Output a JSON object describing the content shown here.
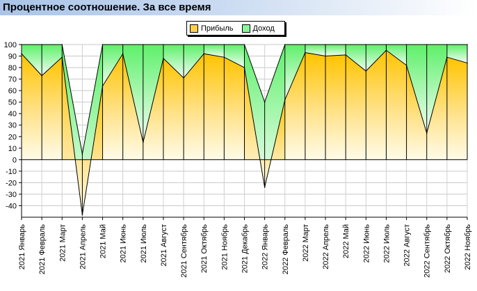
{
  "header": {
    "title": "Процентное соотношение. За все время"
  },
  "chart_data": {
    "type": "area",
    "title": "Процентное соотношение. За все время",
    "categories": [
      "2021 Январь",
      "2021 Февраль",
      "2021 Март",
      "2021 Апрель",
      "2021 Май",
      "2021 Июнь",
      "2021 Июль",
      "2021 Август",
      "2021 Сентябрь",
      "2021 Октябрь",
      "2021 Ноябрь",
      "2021 Декабрь",
      "2022 Январь",
      "2022 Февраль",
      "2022 Март",
      "2022 Апрель",
      "2022 Май",
      "2022 Июнь",
      "2022 Июль",
      "2022 Август",
      "2022 Сентябрь",
      "2022 Октябрь",
      "2022 Ноябрь"
    ],
    "series": [
      {
        "name": "Прибыль",
        "color": "#ffc800",
        "values": [
          92,
          73,
          89,
          -48,
          64,
          92,
          15,
          88,
          71,
          92,
          89,
          80,
          -24,
          52,
          93,
          90,
          91,
          77,
          95,
          82,
          23,
          89,
          84
        ]
      },
      {
        "name": "Доход",
        "color": "#6ff07a",
        "values": [
          100,
          100,
          100,
          5,
          100,
          100,
          100,
          100,
          100,
          100,
          100,
          100,
          50,
          100,
          100,
          100,
          100,
          100,
          100,
          100,
          100,
          100,
          100
        ]
      }
    ],
    "yticks": [
      -40,
      -30,
      -20,
      -10,
      0,
      10,
      20,
      30,
      40,
      50,
      60,
      70,
      80,
      90,
      100
    ],
    "ylim": [
      -50,
      100
    ],
    "grid": true,
    "legend_position": "top-center"
  }
}
